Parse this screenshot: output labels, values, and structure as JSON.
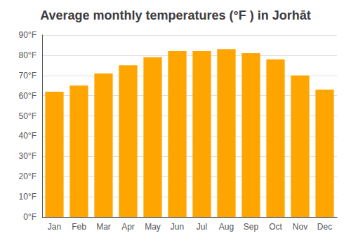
{
  "chart_data": {
    "type": "bar",
    "title": "Average monthly temperatures (°F ) in Jorhāt",
    "categories": [
      "Jan",
      "Feb",
      "Mar",
      "Apr",
      "May",
      "Jun",
      "Jul",
      "Aug",
      "Sep",
      "Oct",
      "Nov",
      "Dec"
    ],
    "values": [
      62,
      65,
      71,
      75,
      79,
      82,
      82,
      83,
      81,
      78,
      70,
      63
    ],
    "color": "#FFA500",
    "ylim": [
      0,
      90
    ],
    "yticks": [
      {
        "value": 0,
        "label": "0°F"
      },
      {
        "value": 10,
        "label": "10°F"
      },
      {
        "value": 20,
        "label": "20°F"
      },
      {
        "value": 30,
        "label": "30°F"
      },
      {
        "value": 40,
        "label": "40°F"
      },
      {
        "value": 50,
        "label": "50°F"
      },
      {
        "value": 60,
        "label": "60°F"
      },
      {
        "value": 70,
        "label": "70°F"
      },
      {
        "value": 80,
        "label": "80°F"
      },
      {
        "value": 90,
        "label": "90°F"
      }
    ],
    "grid": true
  }
}
